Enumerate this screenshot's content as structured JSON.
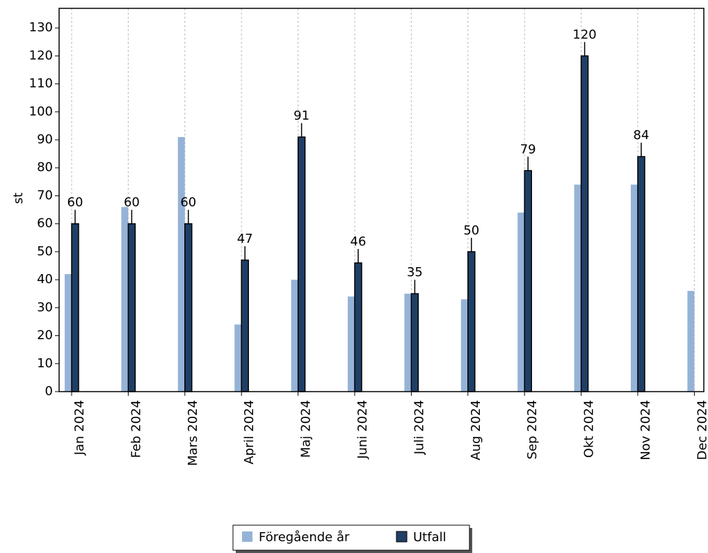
{
  "chart_data": {
    "type": "bar",
    "y_label": "st",
    "categories": [
      "Jan 2024",
      "Feb 2024",
      "Mars 2024",
      "April 2024",
      "Maj 2024",
      "Juni 2024",
      "Juli 2024",
      "Aug 2024",
      "Sep 2024",
      "Okt 2024",
      "Nov 2024",
      "Dec 2024"
    ],
    "series": [
      {
        "name": "Föregående år",
        "color": "#95b3d7",
        "values": [
          42,
          66,
          91,
          24,
          40,
          34,
          35,
          33,
          64,
          74,
          74,
          36
        ]
      },
      {
        "name": "Utfall",
        "color": "#1f3f66",
        "values": [
          60,
          60,
          60,
          47,
          91,
          46,
          35,
          50,
          79,
          120,
          84,
          null
        ],
        "labels": true
      }
    ],
    "ylim": [
      0,
      137
    ],
    "yticks": [
      0,
      10,
      20,
      30,
      40,
      50,
      60,
      70,
      80,
      90,
      100,
      110,
      120,
      130
    ],
    "grid": "x",
    "legend": "bottom"
  }
}
